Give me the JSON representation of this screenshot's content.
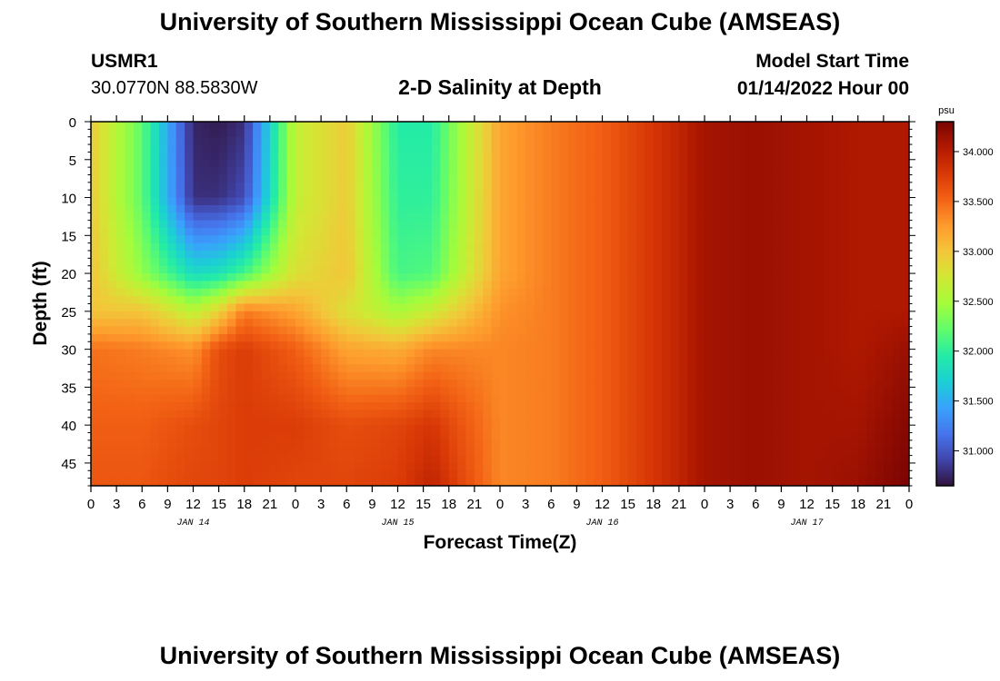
{
  "header": {
    "title": "University of Southern Mississippi Ocean Cube (AMSEAS)",
    "station_id": "USMR1",
    "station_coords": "30.0770N  88.5830W",
    "subtitle": "2-D Salinity at Depth",
    "start_label": "Model Start Time",
    "start_value": "01/14/2022 Hour 00"
  },
  "footer": {
    "title": "University of Southern Mississippi Ocean Cube (AMSEAS)"
  },
  "colors": {
    "colormap": [
      "#30123b",
      "#4145ab",
      "#4675ed",
      "#39a2fc",
      "#1bcfd4",
      "#24eca6",
      "#61fc6c",
      "#a4fc3b",
      "#d1e834",
      "#f3c63a",
      "#fe9b2d",
      "#f36315",
      "#d93806",
      "#b11901",
      "#7a0403"
    ]
  },
  "chart_data": {
    "type": "heatmap",
    "title": "2-D Salinity at Depth",
    "xlabel": "Forecast Time(Z)",
    "ylabel": "Depth (ft)",
    "x_unit": "hours since 01/14/2022 00Z",
    "xlim": [
      0,
      96
    ],
    "ylim": [
      0,
      48
    ],
    "y_inverted": true,
    "x_ticks": [
      {
        "hour": 0,
        "label": "0"
      },
      {
        "hour": 3,
        "label": "3"
      },
      {
        "hour": 6,
        "label": "6"
      },
      {
        "hour": 9,
        "label": "9"
      },
      {
        "hour": 12,
        "label": "12"
      },
      {
        "hour": 15,
        "label": "15"
      },
      {
        "hour": 18,
        "label": "18"
      },
      {
        "hour": 21,
        "label": "21"
      },
      {
        "hour": 24,
        "label": "0"
      },
      {
        "hour": 27,
        "label": "3"
      },
      {
        "hour": 30,
        "label": "6"
      },
      {
        "hour": 33,
        "label": "9"
      },
      {
        "hour": 36,
        "label": "12"
      },
      {
        "hour": 39,
        "label": "15"
      },
      {
        "hour": 42,
        "label": "18"
      },
      {
        "hour": 45,
        "label": "21"
      },
      {
        "hour": 48,
        "label": "0"
      },
      {
        "hour": 51,
        "label": "3"
      },
      {
        "hour": 54,
        "label": "6"
      },
      {
        "hour": 57,
        "label": "9"
      },
      {
        "hour": 60,
        "label": "12"
      },
      {
        "hour": 63,
        "label": "15"
      },
      {
        "hour": 66,
        "label": "18"
      },
      {
        "hour": 69,
        "label": "21"
      },
      {
        "hour": 72,
        "label": "0"
      },
      {
        "hour": 75,
        "label": "3"
      },
      {
        "hour": 78,
        "label": "6"
      },
      {
        "hour": 81,
        "label": "9"
      },
      {
        "hour": 84,
        "label": "12"
      },
      {
        "hour": 87,
        "label": "15"
      },
      {
        "hour": 90,
        "label": "18"
      },
      {
        "hour": 93,
        "label": "21"
      },
      {
        "hour": 96,
        "label": "0"
      }
    ],
    "day_labels": [
      {
        "hour": 12,
        "label": "JAN 14"
      },
      {
        "hour": 36,
        "label": "JAN 15"
      },
      {
        "hour": 60,
        "label": "JAN 16"
      },
      {
        "hour": 84,
        "label": "JAN 17"
      }
    ],
    "y_ticks": [
      0,
      5,
      10,
      15,
      20,
      25,
      30,
      35,
      40,
      45
    ],
    "colorbar": {
      "unit": "psu",
      "min": 30.65,
      "max": 34.3,
      "ticks": [
        {
          "value": 31.0,
          "label": "31.000"
        },
        {
          "value": 31.5,
          "label": "31.500"
        },
        {
          "value": 32.0,
          "label": "32.000"
        },
        {
          "value": 32.5,
          "label": "32.500"
        },
        {
          "value": 33.0,
          "label": "33.000"
        },
        {
          "value": 33.5,
          "label": "33.500"
        },
        {
          "value": 34.0,
          "label": "34.000"
        }
      ]
    },
    "grid_x_hours": [
      0,
      6,
      12,
      15,
      18,
      24,
      30,
      36,
      40,
      48,
      54,
      60,
      66,
      72,
      78,
      84,
      90,
      96
    ],
    "grid_y_depths": [
      0,
      10,
      20,
      25,
      30,
      40,
      48
    ],
    "salinity_psu": [
      [
        32.95,
        32.2,
        30.75,
        30.7,
        30.8,
        32.65,
        32.95,
        31.95,
        31.95,
        33.2,
        33.4,
        33.55,
        33.8,
        34.1,
        34.15,
        34.1,
        34.05,
        34.05
      ],
      [
        32.95,
        32.2,
        30.8,
        30.8,
        30.95,
        32.65,
        32.95,
        32.0,
        32.0,
        33.2,
        33.4,
        33.55,
        33.8,
        34.1,
        34.15,
        34.1,
        34.05,
        34.05
      ],
      [
        33.0,
        32.4,
        31.8,
        31.85,
        32.1,
        32.8,
        33.0,
        32.1,
        32.15,
        33.2,
        33.4,
        33.55,
        33.8,
        34.1,
        34.15,
        34.1,
        34.05,
        34.05
      ],
      [
        33.0,
        33.0,
        32.6,
        32.9,
        33.4,
        33.2,
        32.8,
        32.5,
        32.7,
        33.3,
        33.4,
        33.55,
        33.8,
        34.1,
        34.15,
        34.1,
        34.05,
        34.05
      ],
      [
        33.45,
        33.4,
        33.3,
        33.65,
        33.75,
        33.55,
        33.2,
        33.15,
        33.35,
        33.35,
        33.4,
        33.55,
        33.8,
        34.1,
        34.15,
        34.1,
        34.05,
        34.15
      ],
      [
        33.55,
        33.55,
        33.65,
        33.7,
        33.75,
        33.75,
        33.65,
        33.7,
        33.8,
        33.35,
        33.4,
        33.55,
        33.8,
        34.1,
        34.15,
        34.1,
        34.1,
        34.25
      ],
      [
        33.6,
        33.6,
        33.7,
        33.7,
        33.75,
        33.7,
        33.7,
        33.75,
        33.95,
        33.35,
        33.4,
        33.55,
        33.8,
        34.1,
        34.15,
        34.1,
        34.15,
        34.3
      ]
    ]
  }
}
